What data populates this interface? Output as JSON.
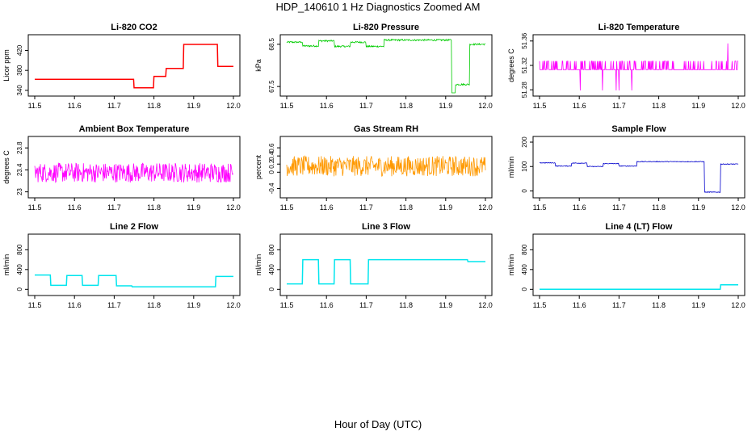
{
  "page": {
    "title": "HDP_140610  1 Hz Diagnostics Zoomed AM",
    "xlabel": "Hour of Day (UTC)"
  },
  "chart_data": [
    {
      "type": "line",
      "title": "Li-820 CO2",
      "ylabel": "Licor ppm",
      "xlabel": "",
      "color": "#ff0000",
      "noise": 0,
      "xlim": [
        11.5,
        12.0
      ],
      "ylim": [
        335,
        445
      ],
      "xticks": [
        11.5,
        11.6,
        11.7,
        11.8,
        11.9,
        12.0
      ],
      "yticks": [
        340,
        380,
        420
      ],
      "steps": [
        [
          11.5,
          362
        ],
        [
          11.75,
          345
        ],
        [
          11.8,
          368
        ],
        [
          11.83,
          384
        ],
        [
          11.875,
          432
        ],
        [
          11.96,
          388
        ],
        [
          12.0,
          388
        ]
      ]
    },
    {
      "type": "line",
      "title": "Li-820 Pressure",
      "ylabel": "kPa",
      "xlabel": "",
      "color": "#00cc00",
      "noise": 0.02,
      "xlim": [
        11.5,
        12.0
      ],
      "ylim": [
        67.35,
        68.65
      ],
      "xticks": [
        11.5,
        11.6,
        11.7,
        11.8,
        11.9,
        12.0
      ],
      "yticks": [
        67.5,
        68.5
      ],
      "steps": [
        [
          11.5,
          68.55
        ],
        [
          11.54,
          68.46
        ],
        [
          11.58,
          68.58
        ],
        [
          11.62,
          68.45
        ],
        [
          11.66,
          68.55
        ],
        [
          11.7,
          68.45
        ],
        [
          11.745,
          68.6
        ],
        [
          11.915,
          67.3
        ],
        [
          11.925,
          67.55
        ],
        [
          11.96,
          68.5
        ],
        [
          12.0,
          68.5
        ]
      ]
    },
    {
      "type": "line",
      "title": "Li-820 Temperature",
      "ylabel": "degrees C",
      "xlabel": "",
      "color": "#ff00ff",
      "noise": 0.02,
      "xlim": [
        11.5,
        12.0
      ],
      "ylim": [
        51.275,
        51.365
      ],
      "xticks": [
        11.5,
        11.6,
        11.7,
        11.8,
        11.9,
        12.0
      ],
      "yticks": [
        51.28,
        51.32,
        51.36
      ],
      "steps": [
        [
          11.5,
          51.32
        ],
        [
          12.0,
          51.32
        ]
      ]
    },
    {
      "type": "line",
      "title": "Ambient Box Temperature",
      "ylabel": "degrees C",
      "xlabel": "",
      "color": "#ff00ff",
      "noise": 0.18,
      "xlim": [
        11.5,
        12.0
      ],
      "ylim": [
        22.95,
        23.95
      ],
      "xticks": [
        11.5,
        11.6,
        11.7,
        11.8,
        11.9,
        12.0
      ],
      "yticks": [
        23.0,
        23.4,
        23.8
      ],
      "steps": [
        [
          11.5,
          23.35
        ],
        [
          12.0,
          23.35
        ]
      ]
    },
    {
      "type": "line",
      "title": "Gas Stream RH",
      "ylabel": "percent",
      "xlabel": "",
      "color": "#ff9900",
      "noise": 0.25,
      "xlim": [
        11.5,
        12.0
      ],
      "ylim": [
        -0.55,
        0.8
      ],
      "xticks": [
        11.5,
        11.6,
        11.7,
        11.8,
        11.9,
        12.0
      ],
      "yticks": [
        -0.4,
        0.0,
        0.2,
        0.4,
        0.6
      ],
      "steps": [
        [
          11.5,
          0.15
        ],
        [
          12.0,
          0.15
        ]
      ]
    },
    {
      "type": "line",
      "title": "Sample Flow",
      "ylabel": "ml/min",
      "xlabel": "",
      "color": "#0000cc",
      "noise": 1.5,
      "xlim": [
        11.5,
        12.0
      ],
      "ylim": [
        -15,
        210
      ],
      "xticks": [
        11.5,
        11.6,
        11.7,
        11.8,
        11.9,
        12.0
      ],
      "yticks": [
        0,
        100,
        200
      ],
      "steps": [
        [
          11.5,
          115
        ],
        [
          11.54,
          102
        ],
        [
          11.58,
          114
        ],
        [
          11.62,
          100
        ],
        [
          11.66,
          112
        ],
        [
          11.7,
          102
        ],
        [
          11.745,
          120
        ],
        [
          11.915,
          -5
        ],
        [
          11.955,
          110
        ],
        [
          12.0,
          110
        ]
      ]
    },
    {
      "type": "line",
      "title": "Line 2 Flow",
      "ylabel": "ml/min",
      "xlabel": "",
      "color": "#00e5ee",
      "noise": 0,
      "xlim": [
        11.5,
        12.0
      ],
      "ylim": [
        -60,
        1050
      ],
      "xticks": [
        11.5,
        11.6,
        11.7,
        11.8,
        11.9,
        12.0
      ],
      "yticks": [
        0,
        400,
        800
      ],
      "steps": [
        [
          11.5,
          290
        ],
        [
          11.54,
          80
        ],
        [
          11.58,
          280
        ],
        [
          11.62,
          80
        ],
        [
          11.66,
          280
        ],
        [
          11.705,
          70
        ],
        [
          11.745,
          50
        ],
        [
          11.955,
          260
        ],
        [
          12.0,
          260
        ]
      ]
    },
    {
      "type": "line",
      "title": "Line 3 Flow",
      "ylabel": "ml/min",
      "xlabel": "",
      "color": "#00e5ee",
      "noise": 0,
      "xlim": [
        11.5,
        12.0
      ],
      "ylim": [
        -60,
        1050
      ],
      "xticks": [
        11.5,
        11.6,
        11.7,
        11.8,
        11.9,
        12.0
      ],
      "yticks": [
        0,
        400,
        800
      ],
      "steps": [
        [
          11.5,
          110
        ],
        [
          11.54,
          600
        ],
        [
          11.58,
          110
        ],
        [
          11.62,
          600
        ],
        [
          11.66,
          110
        ],
        [
          11.705,
          600
        ],
        [
          11.955,
          560
        ],
        [
          12.0,
          560
        ]
      ]
    },
    {
      "type": "line",
      "title": "Line 4 (LT) Flow",
      "ylabel": "ml/min",
      "xlabel": "",
      "color": "#00e5ee",
      "noise": 0,
      "xlim": [
        11.5,
        12.0
      ],
      "ylim": [
        -60,
        1050
      ],
      "xticks": [
        11.5,
        11.6,
        11.7,
        11.8,
        11.9,
        12.0
      ],
      "yticks": [
        0,
        400,
        800
      ],
      "steps": [
        [
          11.5,
          0
        ],
        [
          11.955,
          90
        ],
        [
          12.0,
          90
        ]
      ]
    }
  ]
}
